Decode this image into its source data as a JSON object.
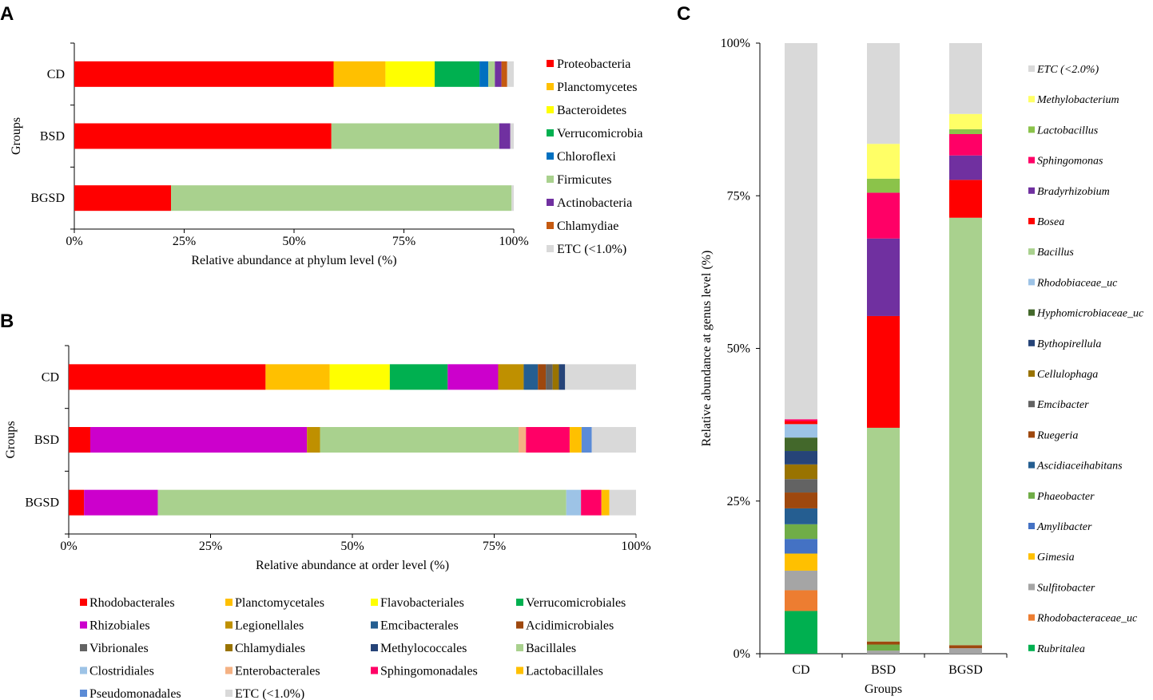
{
  "chart_data": [
    {
      "panel": "A",
      "type": "bar",
      "orientation": "horizontal",
      "stacked": true,
      "xlabel": "Relative abundance at phylum level (%)",
      "ylabel": "Groups",
      "xlim": [
        0,
        100
      ],
      "xticks": [
        "0%",
        "25%",
        "50%",
        "75%",
        "100%"
      ],
      "categories": [
        "CD",
        "BSD",
        "BGSD"
      ],
      "series": [
        {
          "name": "Proteobacteria",
          "color": "#ff0000",
          "values": [
            59,
            58.5,
            22
          ]
        },
        {
          "name": "Planctomycetes",
          "color": "#ffc000",
          "values": [
            11.8,
            0,
            0
          ]
        },
        {
          "name": "Bacteroidetes",
          "color": "#ffff00",
          "values": [
            11.2,
            0,
            0
          ]
        },
        {
          "name": "Verrucomicrobia",
          "color": "#00b050",
          "values": [
            10.2,
            0,
            0
          ]
        },
        {
          "name": "Chloroflexi",
          "color": "#0070c0",
          "values": [
            2,
            0,
            0
          ]
        },
        {
          "name": "Firmicutes",
          "color": "#a9d18e",
          "values": [
            1.5,
            38.2,
            77.5
          ]
        },
        {
          "name": "Actinobacteria",
          "color": "#7030a0",
          "values": [
            1.5,
            2.5,
            0
          ]
        },
        {
          "name": "Chlamydiae",
          "color": "#c55a11",
          "values": [
            1.3,
            0,
            0
          ]
        },
        {
          "name": "ETC (<1.0%)",
          "color": "#d9d9d9",
          "values": [
            1.5,
            0.8,
            0.5
          ]
        }
      ]
    },
    {
      "panel": "B",
      "type": "bar",
      "orientation": "horizontal",
      "stacked": true,
      "xlabel": "Relative abundance at order level (%)",
      "ylabel": "Groups",
      "xlim": [
        0,
        100
      ],
      "xticks": [
        "0%",
        "25%",
        "50%",
        "75%",
        "100%"
      ],
      "categories": [
        "CD",
        "BSD",
        "BGSD"
      ],
      "series": [
        {
          "name": "Rhodobacterales",
          "color": "#ff0000",
          "values": [
            34.7,
            3.8,
            2.7
          ]
        },
        {
          "name": "Planctomycetales",
          "color": "#ffc000",
          "values": [
            11.3,
            0,
            0
          ]
        },
        {
          "name": "Flavobacteriales",
          "color": "#ffff00",
          "values": [
            10.6,
            0,
            0
          ]
        },
        {
          "name": "Verrucomicrobiales",
          "color": "#00b050",
          "values": [
            10.2,
            0,
            0
          ]
        },
        {
          "name": "Rhizobiales",
          "color": "#cc00cc",
          "values": [
            8.9,
            38.2,
            13
          ]
        },
        {
          "name": "Legionellales",
          "color": "#bf9000",
          "values": [
            4.5,
            2.3,
            0
          ]
        },
        {
          "name": "Emcibacterales",
          "color": "#255e91",
          "values": [
            2.5,
            0,
            0
          ]
        },
        {
          "name": "Acidimicrobiales",
          "color": "#9e480e",
          "values": [
            1.4,
            0,
            0
          ]
        },
        {
          "name": "Vibrionales",
          "color": "#636363",
          "values": [
            1.2,
            0,
            0
          ]
        },
        {
          "name": "Chlamydiales",
          "color": "#997300",
          "values": [
            1.1,
            0,
            0
          ]
        },
        {
          "name": "Methylococcales",
          "color": "#264478",
          "values": [
            1.1,
            0,
            0
          ]
        },
        {
          "name": "Bacillales",
          "color": "#a9d18e",
          "values": [
            0,
            35,
            72
          ]
        },
        {
          "name": "Clostridiales",
          "color": "#9dc3e6",
          "values": [
            0,
            0,
            2.6
          ]
        },
        {
          "name": "Enterobacterales",
          "color": "#f4b183",
          "values": [
            0,
            1.3,
            0
          ]
        },
        {
          "name": "Sphingomonadales",
          "color": "#ff0066",
          "values": [
            0,
            7.7,
            3.6
          ]
        },
        {
          "name": "Lactobacillales",
          "color": "#ffc000",
          "values": [
            0,
            2.1,
            1.4
          ]
        },
        {
          "name": "Pseudomonadales",
          "color": "#5b8bd6",
          "values": [
            0,
            1.8,
            0
          ]
        },
        {
          "name": "ETC (<1.0%)",
          "color": "#d9d9d9",
          "values": [
            12.5,
            7.8,
            4.7
          ]
        }
      ]
    },
    {
      "panel": "C",
      "type": "bar",
      "orientation": "vertical",
      "stacked": true,
      "xlabel": "Groups",
      "ylabel": "Relative abundance at genus level (%)",
      "ylim": [
        0,
        100
      ],
      "yticks": [
        "0%",
        "25%",
        "50%",
        "75%",
        "100%"
      ],
      "categories": [
        "CD",
        "BSD",
        "BGSD"
      ],
      "series": [
        {
          "name": "Rubritalea",
          "color": "#00b050",
          "values": [
            7,
            0,
            0
          ]
        },
        {
          "name": "Rhodobacteraceae_uc",
          "color": "#ed7d31",
          "values": [
            3.4,
            0,
            0
          ]
        },
        {
          "name": "Sulfitobacter",
          "color": "#a5a5a5",
          "values": [
            3.2,
            0.5,
            0.9
          ]
        },
        {
          "name": "Gimesia",
          "color": "#ffc000",
          "values": [
            2.8,
            0,
            0
          ]
        },
        {
          "name": "Amylibacter",
          "color": "#4472c4",
          "values": [
            2.4,
            0,
            0
          ]
        },
        {
          "name": "Phaeobacter",
          "color": "#70ad47",
          "values": [
            2.4,
            1,
            0
          ]
        },
        {
          "name": "Ascidiaceihabitans",
          "color": "#255e91",
          "values": [
            2.6,
            0,
            0
          ]
        },
        {
          "name": "Ruegeria",
          "color": "#9e480e",
          "values": [
            2.6,
            0.5,
            0.5
          ]
        },
        {
          "name": "Emcibacter",
          "color": "#636363",
          "values": [
            2.2,
            0,
            0
          ]
        },
        {
          "name": "Cellulophaga",
          "color": "#997300",
          "values": [
            2.4,
            0,
            0
          ]
        },
        {
          "name": "Bythopirellula",
          "color": "#264478",
          "values": [
            2.2,
            0,
            0
          ]
        },
        {
          "name": "Hyphomicrobiaceae_uc",
          "color": "#43682b",
          "values": [
            2.2,
            0,
            0
          ]
        },
        {
          "name": "Rhodobiaceae_uc",
          "color": "#9dc3e6",
          "values": [
            2.2,
            0,
            0
          ]
        },
        {
          "name": "Bacillus",
          "color": "#a9d18e",
          "values": [
            0,
            35,
            70
          ]
        },
        {
          "name": "Bosea",
          "color": "#ff0000",
          "values": [
            0.5,
            18.3,
            6.2
          ]
        },
        {
          "name": "Bradyrhizobium",
          "color": "#7030a0",
          "values": [
            0,
            12.7,
            4
          ]
        },
        {
          "name": "Sphingomonas",
          "color": "#ff0066",
          "values": [
            0.3,
            7.5,
            3.5
          ]
        },
        {
          "name": "Lactobacillus",
          "color": "#8bc34a",
          "values": [
            0,
            2.3,
            0.8
          ]
        },
        {
          "name": "Methylobacterium",
          "color": "#ffff66",
          "values": [
            0,
            5.7,
            2.5
          ]
        },
        {
          "name": "ETC (<2.0%)",
          "color": "#d9d9d9",
          "values": [
            61.6,
            16.5,
            11.6
          ]
        }
      ],
      "legend_order": [
        "ETC (<2.0%)",
        "Methylobacterium",
        "Lactobacillus",
        "Sphingomonas",
        "Bradyrhizobium",
        "Bosea",
        "Bacillus",
        "Rhodobiaceae_uc",
        "Hyphomicrobiaceae_uc",
        "Bythopirellula",
        "Cellulophaga",
        "Emcibacter",
        "Ruegeria",
        "Ascidiaceihabitans",
        "Phaeobacter",
        "Amylibacter",
        "Gimesia",
        "Sulfitobacter",
        "Rhodobacteraceae_uc",
        "Rubritalea"
      ]
    }
  ]
}
